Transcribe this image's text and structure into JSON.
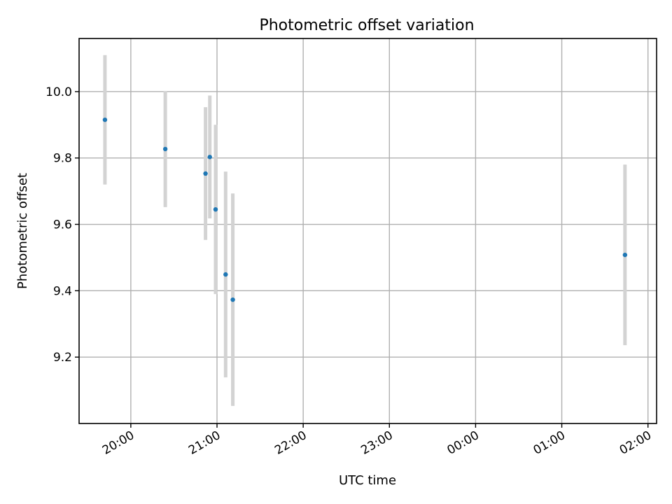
{
  "chart_data": {
    "type": "scatter",
    "title": "Photometric offset variation",
    "xlabel": "UTC time",
    "ylabel": "Photometric offset",
    "x_is_time": true,
    "xlim": [
      "19:24",
      "02:06"
    ],
    "ylim": [
      9.0,
      10.16
    ],
    "x_ticks": [
      "20:00",
      "21:00",
      "22:00",
      "23:00",
      "00:00",
      "01:00",
      "02:00"
    ],
    "y_ticks": [
      "9.2",
      "9.4",
      "9.6",
      "9.8",
      "10.0"
    ],
    "grid": true,
    "colors": {
      "point": "#1f77b4",
      "error_bar": "#d3d3d3"
    },
    "points": [
      {
        "x": "19:42",
        "y": 9.915,
        "err": 0.195
      },
      {
        "x": "20:24",
        "y": 9.827,
        "err": 0.175
      },
      {
        "x": "20:52",
        "y": 9.753,
        "err": 0.2
      },
      {
        "x": "20:55",
        "y": 9.803,
        "err": 0.185
      },
      {
        "x": "20:59",
        "y": 9.645,
        "err": 0.255
      },
      {
        "x": "21:06",
        "y": 9.449,
        "err": 0.31
      },
      {
        "x": "21:11",
        "y": 9.373,
        "err": 0.32
      },
      {
        "x": "01:44",
        "y": 9.508,
        "err": 0.272
      }
    ]
  }
}
